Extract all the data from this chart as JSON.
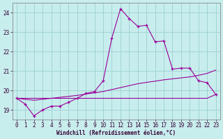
{
  "xlabel": "Windchill (Refroidissement éolien,°C)",
  "bg_color": "#c8eded",
  "grid_color": "#a0d4d4",
  "line_color": "#990099",
  "x": [
    0,
    1,
    2,
    3,
    4,
    5,
    6,
    7,
    8,
    9,
    10,
    11,
    12,
    13,
    14,
    15,
    16,
    17,
    18,
    19,
    20,
    21,
    22,
    23
  ],
  "main_line": [
    19.6,
    19.3,
    18.7,
    19.0,
    19.2,
    19.2,
    19.4,
    19.6,
    19.85,
    19.95,
    20.5,
    22.7,
    24.2,
    23.7,
    23.3,
    23.35,
    22.5,
    22.55,
    21.1,
    21.15,
    21.15,
    20.5,
    20.4,
    19.8
  ],
  "flat_line": [
    19.6,
    19.6,
    19.6,
    19.6,
    19.6,
    19.6,
    19.6,
    19.6,
    19.6,
    19.6,
    19.6,
    19.6,
    19.6,
    19.6,
    19.6,
    19.6,
    19.6,
    19.6,
    19.6,
    19.6,
    19.6,
    19.6,
    19.6,
    19.8
  ],
  "trend_line": [
    19.6,
    19.55,
    19.5,
    19.55,
    19.6,
    19.65,
    19.7,
    19.75,
    19.82,
    19.88,
    19.95,
    20.05,
    20.15,
    20.25,
    20.35,
    20.42,
    20.48,
    20.55,
    20.6,
    20.65,
    20.7,
    20.78,
    20.88,
    21.05
  ],
  "ylim": [
    18.5,
    24.5
  ],
  "yticks": [
    19,
    20,
    21,
    22,
    23,
    24
  ],
  "xticks": [
    0,
    1,
    2,
    3,
    4,
    5,
    6,
    7,
    8,
    9,
    10,
    11,
    12,
    13,
    14,
    15,
    16,
    17,
    18,
    19,
    20,
    21,
    22,
    23
  ],
  "xlabel_fontsize": 5.5,
  "tick_fontsize": 5.5,
  "linewidth": 0.8,
  "marker_size": 3.0
}
